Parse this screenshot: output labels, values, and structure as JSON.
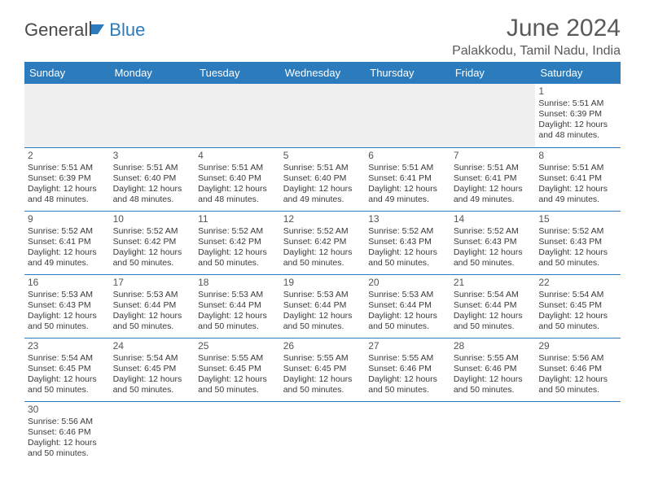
{
  "logo": {
    "part1": "General",
    "part2": "Blue"
  },
  "title": "June 2024",
  "subtitle": "Palakkodu, Tamil Nadu, India",
  "colors": {
    "header_bg": "#2b7bbd",
    "header_text": "#ffffff",
    "border": "#2b7bbd",
    "text": "#3a3a3a",
    "title_color": "#5a5a5a",
    "empty_bg": "#f0f0f0"
  },
  "daynames": [
    "Sunday",
    "Monday",
    "Tuesday",
    "Wednesday",
    "Thursday",
    "Friday",
    "Saturday"
  ],
  "weeks": [
    [
      null,
      null,
      null,
      null,
      null,
      null,
      {
        "n": "1",
        "sunrise": "Sunrise: 5:51 AM",
        "sunset": "Sunset: 6:39 PM",
        "daylight1": "Daylight: 12 hours",
        "daylight2": "and 48 minutes."
      }
    ],
    [
      {
        "n": "2",
        "sunrise": "Sunrise: 5:51 AM",
        "sunset": "Sunset: 6:39 PM",
        "daylight1": "Daylight: 12 hours",
        "daylight2": "and 48 minutes."
      },
      {
        "n": "3",
        "sunrise": "Sunrise: 5:51 AM",
        "sunset": "Sunset: 6:40 PM",
        "daylight1": "Daylight: 12 hours",
        "daylight2": "and 48 minutes."
      },
      {
        "n": "4",
        "sunrise": "Sunrise: 5:51 AM",
        "sunset": "Sunset: 6:40 PM",
        "daylight1": "Daylight: 12 hours",
        "daylight2": "and 48 minutes."
      },
      {
        "n": "5",
        "sunrise": "Sunrise: 5:51 AM",
        "sunset": "Sunset: 6:40 PM",
        "daylight1": "Daylight: 12 hours",
        "daylight2": "and 49 minutes."
      },
      {
        "n": "6",
        "sunrise": "Sunrise: 5:51 AM",
        "sunset": "Sunset: 6:41 PM",
        "daylight1": "Daylight: 12 hours",
        "daylight2": "and 49 minutes."
      },
      {
        "n": "7",
        "sunrise": "Sunrise: 5:51 AM",
        "sunset": "Sunset: 6:41 PM",
        "daylight1": "Daylight: 12 hours",
        "daylight2": "and 49 minutes."
      },
      {
        "n": "8",
        "sunrise": "Sunrise: 5:51 AM",
        "sunset": "Sunset: 6:41 PM",
        "daylight1": "Daylight: 12 hours",
        "daylight2": "and 49 minutes."
      }
    ],
    [
      {
        "n": "9",
        "sunrise": "Sunrise: 5:52 AM",
        "sunset": "Sunset: 6:41 PM",
        "daylight1": "Daylight: 12 hours",
        "daylight2": "and 49 minutes."
      },
      {
        "n": "10",
        "sunrise": "Sunrise: 5:52 AM",
        "sunset": "Sunset: 6:42 PM",
        "daylight1": "Daylight: 12 hours",
        "daylight2": "and 50 minutes."
      },
      {
        "n": "11",
        "sunrise": "Sunrise: 5:52 AM",
        "sunset": "Sunset: 6:42 PM",
        "daylight1": "Daylight: 12 hours",
        "daylight2": "and 50 minutes."
      },
      {
        "n": "12",
        "sunrise": "Sunrise: 5:52 AM",
        "sunset": "Sunset: 6:42 PM",
        "daylight1": "Daylight: 12 hours",
        "daylight2": "and 50 minutes."
      },
      {
        "n": "13",
        "sunrise": "Sunrise: 5:52 AM",
        "sunset": "Sunset: 6:43 PM",
        "daylight1": "Daylight: 12 hours",
        "daylight2": "and 50 minutes."
      },
      {
        "n": "14",
        "sunrise": "Sunrise: 5:52 AM",
        "sunset": "Sunset: 6:43 PM",
        "daylight1": "Daylight: 12 hours",
        "daylight2": "and 50 minutes."
      },
      {
        "n": "15",
        "sunrise": "Sunrise: 5:52 AM",
        "sunset": "Sunset: 6:43 PM",
        "daylight1": "Daylight: 12 hours",
        "daylight2": "and 50 minutes."
      }
    ],
    [
      {
        "n": "16",
        "sunrise": "Sunrise: 5:53 AM",
        "sunset": "Sunset: 6:43 PM",
        "daylight1": "Daylight: 12 hours",
        "daylight2": "and 50 minutes."
      },
      {
        "n": "17",
        "sunrise": "Sunrise: 5:53 AM",
        "sunset": "Sunset: 6:44 PM",
        "daylight1": "Daylight: 12 hours",
        "daylight2": "and 50 minutes."
      },
      {
        "n": "18",
        "sunrise": "Sunrise: 5:53 AM",
        "sunset": "Sunset: 6:44 PM",
        "daylight1": "Daylight: 12 hours",
        "daylight2": "and 50 minutes."
      },
      {
        "n": "19",
        "sunrise": "Sunrise: 5:53 AM",
        "sunset": "Sunset: 6:44 PM",
        "daylight1": "Daylight: 12 hours",
        "daylight2": "and 50 minutes."
      },
      {
        "n": "20",
        "sunrise": "Sunrise: 5:53 AM",
        "sunset": "Sunset: 6:44 PM",
        "daylight1": "Daylight: 12 hours",
        "daylight2": "and 50 minutes."
      },
      {
        "n": "21",
        "sunrise": "Sunrise: 5:54 AM",
        "sunset": "Sunset: 6:44 PM",
        "daylight1": "Daylight: 12 hours",
        "daylight2": "and 50 minutes."
      },
      {
        "n": "22",
        "sunrise": "Sunrise: 5:54 AM",
        "sunset": "Sunset: 6:45 PM",
        "daylight1": "Daylight: 12 hours",
        "daylight2": "and 50 minutes."
      }
    ],
    [
      {
        "n": "23",
        "sunrise": "Sunrise: 5:54 AM",
        "sunset": "Sunset: 6:45 PM",
        "daylight1": "Daylight: 12 hours",
        "daylight2": "and 50 minutes."
      },
      {
        "n": "24",
        "sunrise": "Sunrise: 5:54 AM",
        "sunset": "Sunset: 6:45 PM",
        "daylight1": "Daylight: 12 hours",
        "daylight2": "and 50 minutes."
      },
      {
        "n": "25",
        "sunrise": "Sunrise: 5:55 AM",
        "sunset": "Sunset: 6:45 PM",
        "daylight1": "Daylight: 12 hours",
        "daylight2": "and 50 minutes."
      },
      {
        "n": "26",
        "sunrise": "Sunrise: 5:55 AM",
        "sunset": "Sunset: 6:45 PM",
        "daylight1": "Daylight: 12 hours",
        "daylight2": "and 50 minutes."
      },
      {
        "n": "27",
        "sunrise": "Sunrise: 5:55 AM",
        "sunset": "Sunset: 6:46 PM",
        "daylight1": "Daylight: 12 hours",
        "daylight2": "and 50 minutes."
      },
      {
        "n": "28",
        "sunrise": "Sunrise: 5:55 AM",
        "sunset": "Sunset: 6:46 PM",
        "daylight1": "Daylight: 12 hours",
        "daylight2": "and 50 minutes."
      },
      {
        "n": "29",
        "sunrise": "Sunrise: 5:56 AM",
        "sunset": "Sunset: 6:46 PM",
        "daylight1": "Daylight: 12 hours",
        "daylight2": "and 50 minutes."
      }
    ],
    [
      {
        "n": "30",
        "sunrise": "Sunrise: 5:56 AM",
        "sunset": "Sunset: 6:46 PM",
        "daylight1": "Daylight: 12 hours",
        "daylight2": "and 50 minutes."
      },
      null,
      null,
      null,
      null,
      null,
      null
    ]
  ]
}
